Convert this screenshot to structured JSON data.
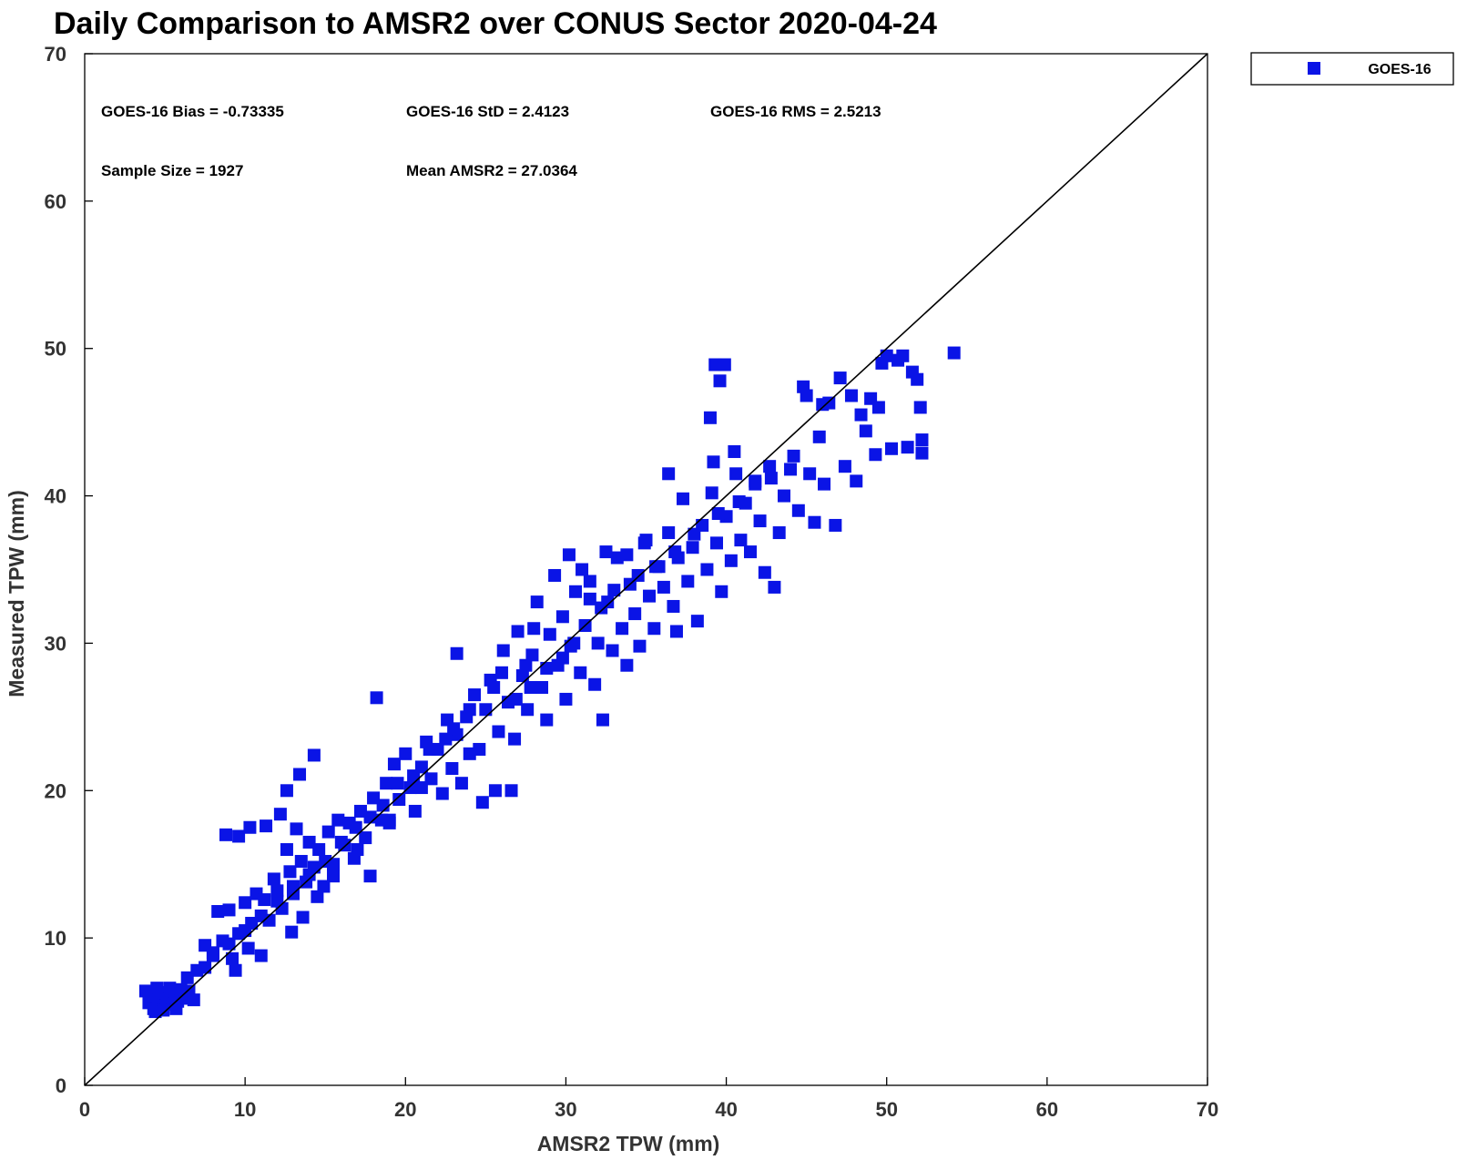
{
  "chart_data": {
    "type": "scatter",
    "title": "Daily Comparison to AMSR2 over CONUS Sector 2020-04-24",
    "xlabel": "AMSR2 TPW (mm)",
    "ylabel": "Measured TPW (mm)",
    "xlim": [
      0,
      70
    ],
    "ylim": [
      0,
      70
    ],
    "xticks": [
      "0",
      "10",
      "20",
      "30",
      "40",
      "50",
      "60",
      "70"
    ],
    "yticks": [
      "0",
      "10",
      "20",
      "30",
      "40",
      "50",
      "60",
      "70"
    ],
    "grid": false,
    "legend_position": "top-right, outside plot",
    "reference_line": {
      "from": [
        0,
        0
      ],
      "to": [
        70,
        70
      ]
    },
    "stats": {
      "bias": "GOES-16 Bias = -0.73335",
      "std": "GOES-16 StD = 2.4123",
      "rms": "GOES-16 RMS = 2.5213",
      "sample_size": "Sample Size = 1927",
      "mean": "Mean AMSR2 = 27.0364"
    },
    "series": [
      {
        "name": "GOES-16",
        "color": "#0a14e6",
        "marker": "square",
        "points": [
          [
            3.8,
            6.4
          ],
          [
            4.0,
            5.6
          ],
          [
            4.2,
            6.1
          ],
          [
            4.3,
            5.2
          ],
          [
            4.5,
            6.6
          ],
          [
            4.6,
            5.8
          ],
          [
            4.8,
            5.4
          ],
          [
            5.0,
            6.3
          ],
          [
            5.1,
            5.9
          ],
          [
            5.3,
            6.6
          ],
          [
            5.5,
            5.5
          ],
          [
            5.6,
            6.2
          ],
          [
            5.8,
            5.7
          ],
          [
            6.0,
            6.5
          ],
          [
            6.2,
            5.9
          ],
          [
            6.5,
            6.4
          ],
          [
            6.8,
            5.8
          ],
          [
            4.4,
            5.0
          ],
          [
            4.9,
            5.1
          ],
          [
            5.7,
            5.2
          ],
          [
            6.4,
            7.3
          ],
          [
            7.0,
            7.8
          ],
          [
            7.5,
            9.5
          ],
          [
            8.0,
            9.0
          ],
          [
            8.3,
            11.8
          ],
          [
            8.6,
            9.8
          ],
          [
            9.0,
            11.9
          ],
          [
            9.2,
            8.6
          ],
          [
            9.4,
            7.8
          ],
          [
            9.6,
            10.3
          ],
          [
            10.0,
            12.4
          ],
          [
            10.2,
            9.3
          ],
          [
            10.4,
            11.0
          ],
          [
            10.7,
            13.0
          ],
          [
            11.0,
            8.8
          ],
          [
            11.2,
            12.6
          ],
          [
            11.5,
            11.2
          ],
          [
            11.8,
            14.0
          ],
          [
            12.0,
            13.2
          ],
          [
            12.3,
            12.0
          ],
          [
            12.6,
            16.0
          ],
          [
            12.8,
            14.5
          ],
          [
            13.0,
            13.0
          ],
          [
            13.2,
            17.4
          ],
          [
            13.5,
            15.2
          ],
          [
            13.8,
            13.8
          ],
          [
            14.0,
            16.5
          ],
          [
            14.3,
            14.8
          ],
          [
            14.6,
            16.0
          ],
          [
            14.9,
            13.5
          ],
          [
            8.8,
            17.0
          ],
          [
            9.6,
            16.9
          ],
          [
            10.3,
            17.5
          ],
          [
            11.3,
            17.6
          ],
          [
            12.2,
            18.4
          ],
          [
            12.6,
            20.0
          ],
          [
            13.4,
            21.1
          ],
          [
            14.3,
            22.4
          ],
          [
            12.9,
            10.4
          ],
          [
            13.6,
            11.4
          ],
          [
            15.2,
            17.2
          ],
          [
            15.5,
            15.0
          ],
          [
            15.8,
            18.0
          ],
          [
            16.2,
            16.3
          ],
          [
            16.5,
            17.8
          ],
          [
            16.8,
            15.4
          ],
          [
            17.2,
            18.6
          ],
          [
            17.5,
            16.8
          ],
          [
            17.8,
            14.2
          ],
          [
            18.0,
            19.5
          ],
          [
            18.2,
            26.3
          ],
          [
            18.5,
            18.0
          ],
          [
            18.8,
            20.5
          ],
          [
            19.0,
            17.8
          ],
          [
            19.3,
            21.8
          ],
          [
            19.6,
            19.4
          ],
          [
            20.0,
            22.5
          ],
          [
            20.3,
            20.2
          ],
          [
            20.6,
            18.6
          ],
          [
            21.0,
            21.6
          ],
          [
            21.3,
            23.3
          ],
          [
            21.6,
            20.8
          ],
          [
            22.0,
            22.8
          ],
          [
            22.3,
            19.8
          ],
          [
            22.6,
            24.8
          ],
          [
            22.9,
            21.5
          ],
          [
            23.2,
            23.8
          ],
          [
            23.5,
            20.5
          ],
          [
            23.8,
            25.0
          ],
          [
            24.0,
            22.5
          ],
          [
            23.2,
            29.3
          ],
          [
            24.3,
            26.5
          ],
          [
            24.6,
            22.8
          ],
          [
            24.8,
            19.2
          ],
          [
            25.0,
            25.5
          ],
          [
            25.3,
            27.5
          ],
          [
            25.6,
            20.0
          ],
          [
            25.8,
            24.0
          ],
          [
            26.1,
            29.5
          ],
          [
            26.4,
            26.0
          ],
          [
            26.6,
            20.0
          ],
          [
            26.8,
            23.5
          ],
          [
            27.0,
            30.8
          ],
          [
            27.3,
            27.8
          ],
          [
            27.6,
            25.5
          ],
          [
            27.9,
            29.2
          ],
          [
            28.2,
            32.8
          ],
          [
            28.5,
            27.0
          ],
          [
            28.8,
            24.8
          ],
          [
            29.0,
            30.6
          ],
          [
            29.3,
            34.6
          ],
          [
            29.5,
            28.5
          ],
          [
            29.8,
            31.8
          ],
          [
            30.0,
            26.2
          ],
          [
            30.3,
            29.8
          ],
          [
            30.6,
            33.5
          ],
          [
            30.9,
            28.0
          ],
          [
            31.2,
            31.2
          ],
          [
            31.5,
            34.2
          ],
          [
            31.8,
            27.2
          ],
          [
            32.0,
            30.0
          ],
          [
            32.3,
            24.8
          ],
          [
            32.6,
            32.8
          ],
          [
            32.9,
            29.5
          ],
          [
            33.2,
            35.8
          ],
          [
            33.5,
            31.0
          ],
          [
            33.8,
            28.5
          ],
          [
            34.0,
            34.0
          ],
          [
            34.3,
            32.0
          ],
          [
            34.6,
            29.8
          ],
          [
            34.9,
            36.8
          ],
          [
            35.2,
            33.2
          ],
          [
            35.5,
            31.0
          ],
          [
            35.8,
            35.2
          ],
          [
            36.1,
            33.8
          ],
          [
            36.4,
            37.5
          ],
          [
            36.7,
            32.5
          ],
          [
            37.0,
            35.8
          ],
          [
            37.3,
            39.8
          ],
          [
            37.6,
            34.2
          ],
          [
            37.9,
            36.5
          ],
          [
            38.2,
            31.5
          ],
          [
            38.5,
            38.0
          ],
          [
            38.8,
            35.0
          ],
          [
            39.1,
            40.2
          ],
          [
            39.4,
            36.8
          ],
          [
            39.7,
            33.5
          ],
          [
            40.0,
            38.6
          ],
          [
            40.3,
            35.6
          ],
          [
            40.6,
            41.5
          ],
          [
            40.9,
            37.0
          ],
          [
            41.2,
            39.5
          ],
          [
            41.5,
            36.2
          ],
          [
            41.8,
            40.8
          ],
          [
            42.1,
            38.3
          ],
          [
            42.4,
            34.8
          ],
          [
            42.7,
            42.0
          ],
          [
            43.0,
            33.8
          ],
          [
            43.3,
            37.5
          ],
          [
            43.6,
            40.0
          ],
          [
            39.0,
            45.3
          ],
          [
            39.3,
            48.9
          ],
          [
            39.6,
            47.8
          ],
          [
            39.9,
            48.9
          ],
          [
            40.5,
            43.0
          ],
          [
            39.2,
            42.3
          ],
          [
            44.2,
            42.7
          ],
          [
            44.5,
            39.0
          ],
          [
            44.8,
            47.4
          ],
          [
            45.2,
            41.5
          ],
          [
            45.5,
            38.2
          ],
          [
            45.8,
            44.0
          ],
          [
            46.1,
            40.8
          ],
          [
            46.4,
            46.3
          ],
          [
            46.8,
            38.0
          ],
          [
            47.1,
            48.0
          ],
          [
            47.4,
            42.0
          ],
          [
            47.8,
            46.8
          ],
          [
            48.1,
            41.0
          ],
          [
            48.4,
            45.5
          ],
          [
            48.7,
            44.4
          ],
          [
            49.0,
            46.6
          ],
          [
            49.3,
            42.8
          ],
          [
            49.7,
            49.0
          ],
          [
            50.0,
            49.5
          ],
          [
            50.3,
            43.2
          ],
          [
            50.7,
            49.2
          ],
          [
            51.0,
            49.5
          ],
          [
            51.3,
            43.3
          ],
          [
            51.6,
            48.4
          ],
          [
            51.9,
            47.9
          ],
          [
            52.1,
            46.0
          ],
          [
            52.2,
            43.8
          ],
          [
            52.2,
            42.9
          ],
          [
            54.2,
            49.7
          ],
          [
            49.5,
            46.0
          ],
          [
            46.0,
            46.2
          ],
          [
            45.0,
            46.8
          ],
          [
            36.9,
            30.8
          ],
          [
            36.4,
            41.5
          ],
          [
            30.2,
            36.0
          ],
          [
            31.0,
            35.0
          ],
          [
            32.5,
            36.2
          ],
          [
            33.8,
            36.0
          ],
          [
            35.0,
            37.0
          ],
          [
            28.0,
            31.0
          ],
          [
            27.5,
            28.5
          ],
          [
            26.0,
            28.0
          ],
          [
            25.5,
            27.0
          ],
          [
            24.0,
            25.5
          ],
          [
            22.5,
            23.5
          ],
          [
            21.5,
            22.8
          ],
          [
            20.5,
            21.0
          ],
          [
            19.5,
            20.5
          ],
          [
            18.6,
            19.0
          ],
          [
            17.8,
            18.2
          ],
          [
            16.9,
            17.5
          ],
          [
            16.0,
            16.5
          ],
          [
            15.0,
            15.2
          ],
          [
            14.0,
            14.3
          ],
          [
            13.0,
            13.5
          ],
          [
            12.0,
            12.5
          ],
          [
            11.0,
            11.5
          ],
          [
            10.0,
            10.5
          ],
          [
            9.0,
            9.6
          ],
          [
            8.0,
            8.8
          ],
          [
            7.5,
            8.0
          ],
          [
            31.5,
            33.0
          ],
          [
            32.2,
            32.4
          ],
          [
            33.0,
            33.6
          ],
          [
            29.8,
            29.0
          ],
          [
            30.5,
            30.0
          ],
          [
            28.8,
            28.3
          ],
          [
            27.8,
            27.0
          ],
          [
            26.9,
            26.2
          ],
          [
            34.5,
            34.6
          ],
          [
            35.6,
            35.2
          ],
          [
            36.8,
            36.2
          ],
          [
            38.0,
            37.4
          ],
          [
            39.5,
            38.8
          ],
          [
            40.8,
            39.6
          ],
          [
            41.8,
            41.0
          ],
          [
            42.8,
            41.2
          ],
          [
            44.0,
            41.8
          ],
          [
            23.0,
            24.2
          ],
          [
            21.0,
            20.2
          ],
          [
            19.0,
            18.0
          ],
          [
            17.0,
            16.0
          ],
          [
            15.5,
            14.2
          ],
          [
            14.5,
            12.8
          ]
        ]
      }
    ]
  }
}
